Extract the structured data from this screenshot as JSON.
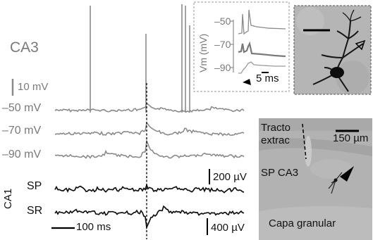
{
  "labels": {
    "region_ca3": "CA3",
    "voltage_scale": "10 mV",
    "trace_levels": [
      "–50 mV",
      "–70 mV",
      "–90 mV"
    ],
    "region_ca1": "CA1",
    "channel_sp": "SP",
    "channel_sr": "SR",
    "field_scale_top": "200 µV",
    "field_scale_bottom": "400 µV",
    "time_scale": "100 ms"
  },
  "inset": {
    "ylabel": "Vm (mV)",
    "yticks": [
      "–50",
      "–70",
      "–90"
    ],
    "time_scale": "5 ms"
  },
  "photo_top": {
    "marker": "open-arrowhead"
  },
  "photo_bottom": {
    "tract_label_line1": "Tracto",
    "tract_label_line2": "extrac",
    "scale_label": "150 µm",
    "layer_label": "SP CA3",
    "granular_label": "Capa granular",
    "marker": "filled-arrowhead"
  },
  "colors": {
    "intracellular_trace": "#8a8a8a",
    "field_trace": "#111111",
    "photo_background": "#b4b4b4"
  }
}
